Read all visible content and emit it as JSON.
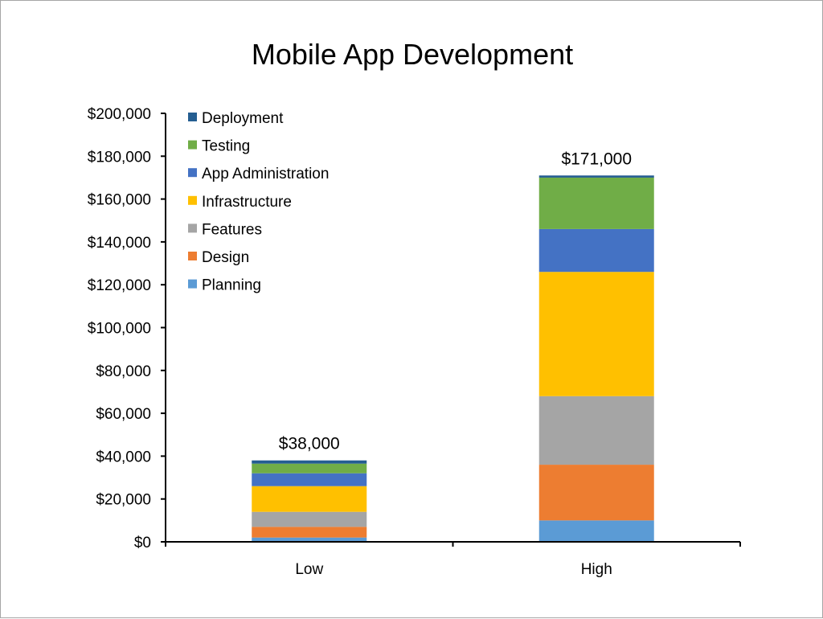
{
  "chart_data": {
    "type": "bar",
    "stacked": true,
    "title": "Mobile App Development",
    "xlabel": "",
    "ylabel": "",
    "categories": [
      "Low",
      "High"
    ],
    "ylim": [
      0,
      200000
    ],
    "yticks": [
      0,
      20000,
      40000,
      60000,
      80000,
      100000,
      120000,
      140000,
      160000,
      180000,
      200000
    ],
    "ytick_labels": [
      "$0",
      "$20,000",
      "$40,000",
      "$60,000",
      "$80,000",
      "$100,000",
      "$120,000",
      "$140,000",
      "$160,000",
      "$180,000",
      "$200,000"
    ],
    "totals": [
      "$38,000",
      "$171,000"
    ],
    "grid": false,
    "legend_position": "top-left",
    "series": [
      {
        "name": "Planning",
        "color": "#5B9BD5",
        "values": [
          2000,
          10000
        ]
      },
      {
        "name": "Design",
        "color": "#ED7D31",
        "values": [
          5000,
          26000
        ]
      },
      {
        "name": "Features",
        "color": "#A5A5A5",
        "values": [
          7000,
          32000
        ]
      },
      {
        "name": "Infrastructure",
        "color": "#FFC000",
        "values": [
          12000,
          58000
        ]
      },
      {
        "name": "App Administration",
        "color": "#4472C4",
        "values": [
          6000,
          20000
        ]
      },
      {
        "name": "Testing",
        "color": "#70AD47",
        "values": [
          4500,
          24000
        ]
      },
      {
        "name": "Deployment",
        "color": "#255E91",
        "values": [
          1500,
          1000
        ]
      }
    ]
  }
}
